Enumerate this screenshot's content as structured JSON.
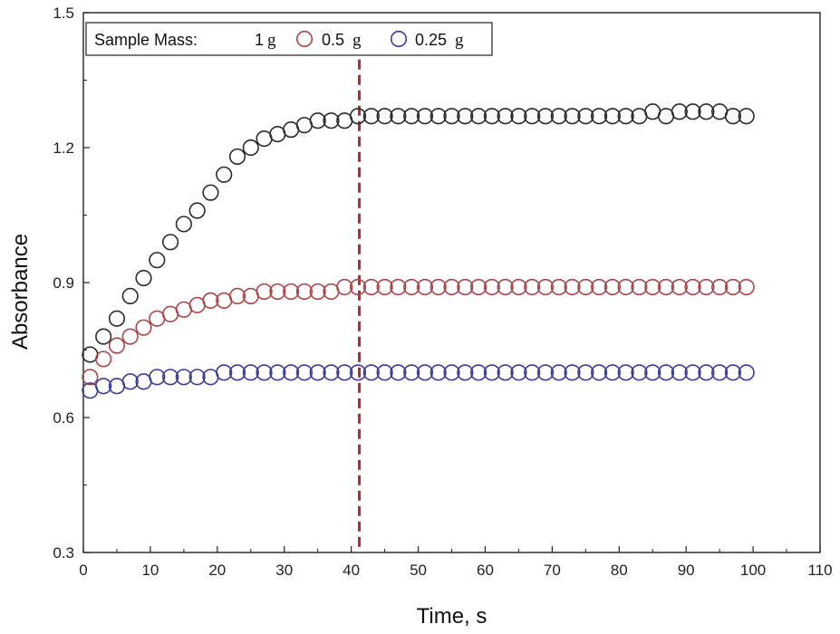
{
  "chart_data": {
    "type": "scatter",
    "title": "",
    "xlabel": "Time,  s",
    "ylabel": "Absorbance",
    "xlim": [
      0,
      110
    ],
    "ylim": [
      0.3,
      1.5
    ],
    "xticks": [
      0,
      10,
      20,
      30,
      40,
      50,
      60,
      70,
      80,
      90,
      100,
      110
    ],
    "yticks": [
      0.3,
      0.6,
      0.9,
      1.2,
      1.5
    ],
    "legend": {
      "title": "Sample Mass:",
      "placement": "top-left",
      "unit": "g",
      "entries": [
        "1",
        "0.5",
        "0.25"
      ]
    },
    "marker_line": {
      "x": 41.2,
      "style": "dashed",
      "color": "#c0272d"
    },
    "series": [
      {
        "name": "1 g",
        "color": "#2b2b2b",
        "x": [
          1,
          3,
          5,
          7,
          9,
          11,
          13,
          15,
          17,
          19,
          21,
          23,
          25,
          27,
          29,
          31,
          33,
          35,
          37,
          39,
          41,
          43,
          45,
          47,
          49,
          51,
          53,
          55,
          57,
          59,
          61,
          63,
          65,
          67,
          69,
          71,
          73,
          75,
          77,
          79,
          81,
          83,
          85,
          87,
          89,
          91,
          93,
          95,
          97,
          99
        ],
        "y": [
          0.74,
          0.78,
          0.82,
          0.87,
          0.91,
          0.95,
          0.99,
          1.03,
          1.06,
          1.1,
          1.14,
          1.18,
          1.2,
          1.22,
          1.23,
          1.24,
          1.25,
          1.26,
          1.26,
          1.26,
          1.27,
          1.27,
          1.27,
          1.27,
          1.27,
          1.27,
          1.27,
          1.27,
          1.27,
          1.27,
          1.27,
          1.27,
          1.27,
          1.27,
          1.27,
          1.27,
          1.27,
          1.27,
          1.27,
          1.27,
          1.27,
          1.27,
          1.28,
          1.27,
          1.28,
          1.28,
          1.28,
          1.28,
          1.27,
          1.27
        ]
      },
      {
        "name": "0.5 g",
        "color": "#a8464a",
        "x": [
          1,
          3,
          5,
          7,
          9,
          11,
          13,
          15,
          17,
          19,
          21,
          23,
          25,
          27,
          29,
          31,
          33,
          35,
          37,
          39,
          41,
          43,
          45,
          47,
          49,
          51,
          53,
          55,
          57,
          59,
          61,
          63,
          65,
          67,
          69,
          71,
          73,
          75,
          77,
          79,
          81,
          83,
          85,
          87,
          89,
          91,
          93,
          95,
          97,
          99
        ],
        "y": [
          0.69,
          0.73,
          0.76,
          0.78,
          0.8,
          0.82,
          0.83,
          0.84,
          0.85,
          0.86,
          0.86,
          0.87,
          0.87,
          0.88,
          0.88,
          0.88,
          0.88,
          0.88,
          0.88,
          0.89,
          0.89,
          0.89,
          0.89,
          0.89,
          0.89,
          0.89,
          0.89,
          0.89,
          0.89,
          0.89,
          0.89,
          0.89,
          0.89,
          0.89,
          0.89,
          0.89,
          0.89,
          0.89,
          0.89,
          0.89,
          0.89,
          0.89,
          0.89,
          0.89,
          0.89,
          0.89,
          0.89,
          0.89,
          0.89,
          0.89
        ]
      },
      {
        "name": "0.25 g",
        "color": "#3d3b94",
        "x": [
          1,
          3,
          5,
          7,
          9,
          11,
          13,
          15,
          17,
          19,
          21,
          23,
          25,
          27,
          29,
          31,
          33,
          35,
          37,
          39,
          41,
          43,
          45,
          47,
          49,
          51,
          53,
          55,
          57,
          59,
          61,
          63,
          65,
          67,
          69,
          71,
          73,
          75,
          77,
          79,
          81,
          83,
          85,
          87,
          89,
          91,
          93,
          95,
          97,
          99
        ],
        "y": [
          0.66,
          0.67,
          0.67,
          0.68,
          0.68,
          0.69,
          0.69,
          0.69,
          0.69,
          0.69,
          0.7,
          0.7,
          0.7,
          0.7,
          0.7,
          0.7,
          0.7,
          0.7,
          0.7,
          0.7,
          0.7,
          0.7,
          0.7,
          0.7,
          0.7,
          0.7,
          0.7,
          0.7,
          0.7,
          0.7,
          0.7,
          0.7,
          0.7,
          0.7,
          0.7,
          0.7,
          0.7,
          0.7,
          0.7,
          0.7,
          0.7,
          0.7,
          0.7,
          0.7,
          0.7,
          0.7,
          0.7,
          0.7,
          0.7,
          0.7
        ]
      }
    ]
  }
}
